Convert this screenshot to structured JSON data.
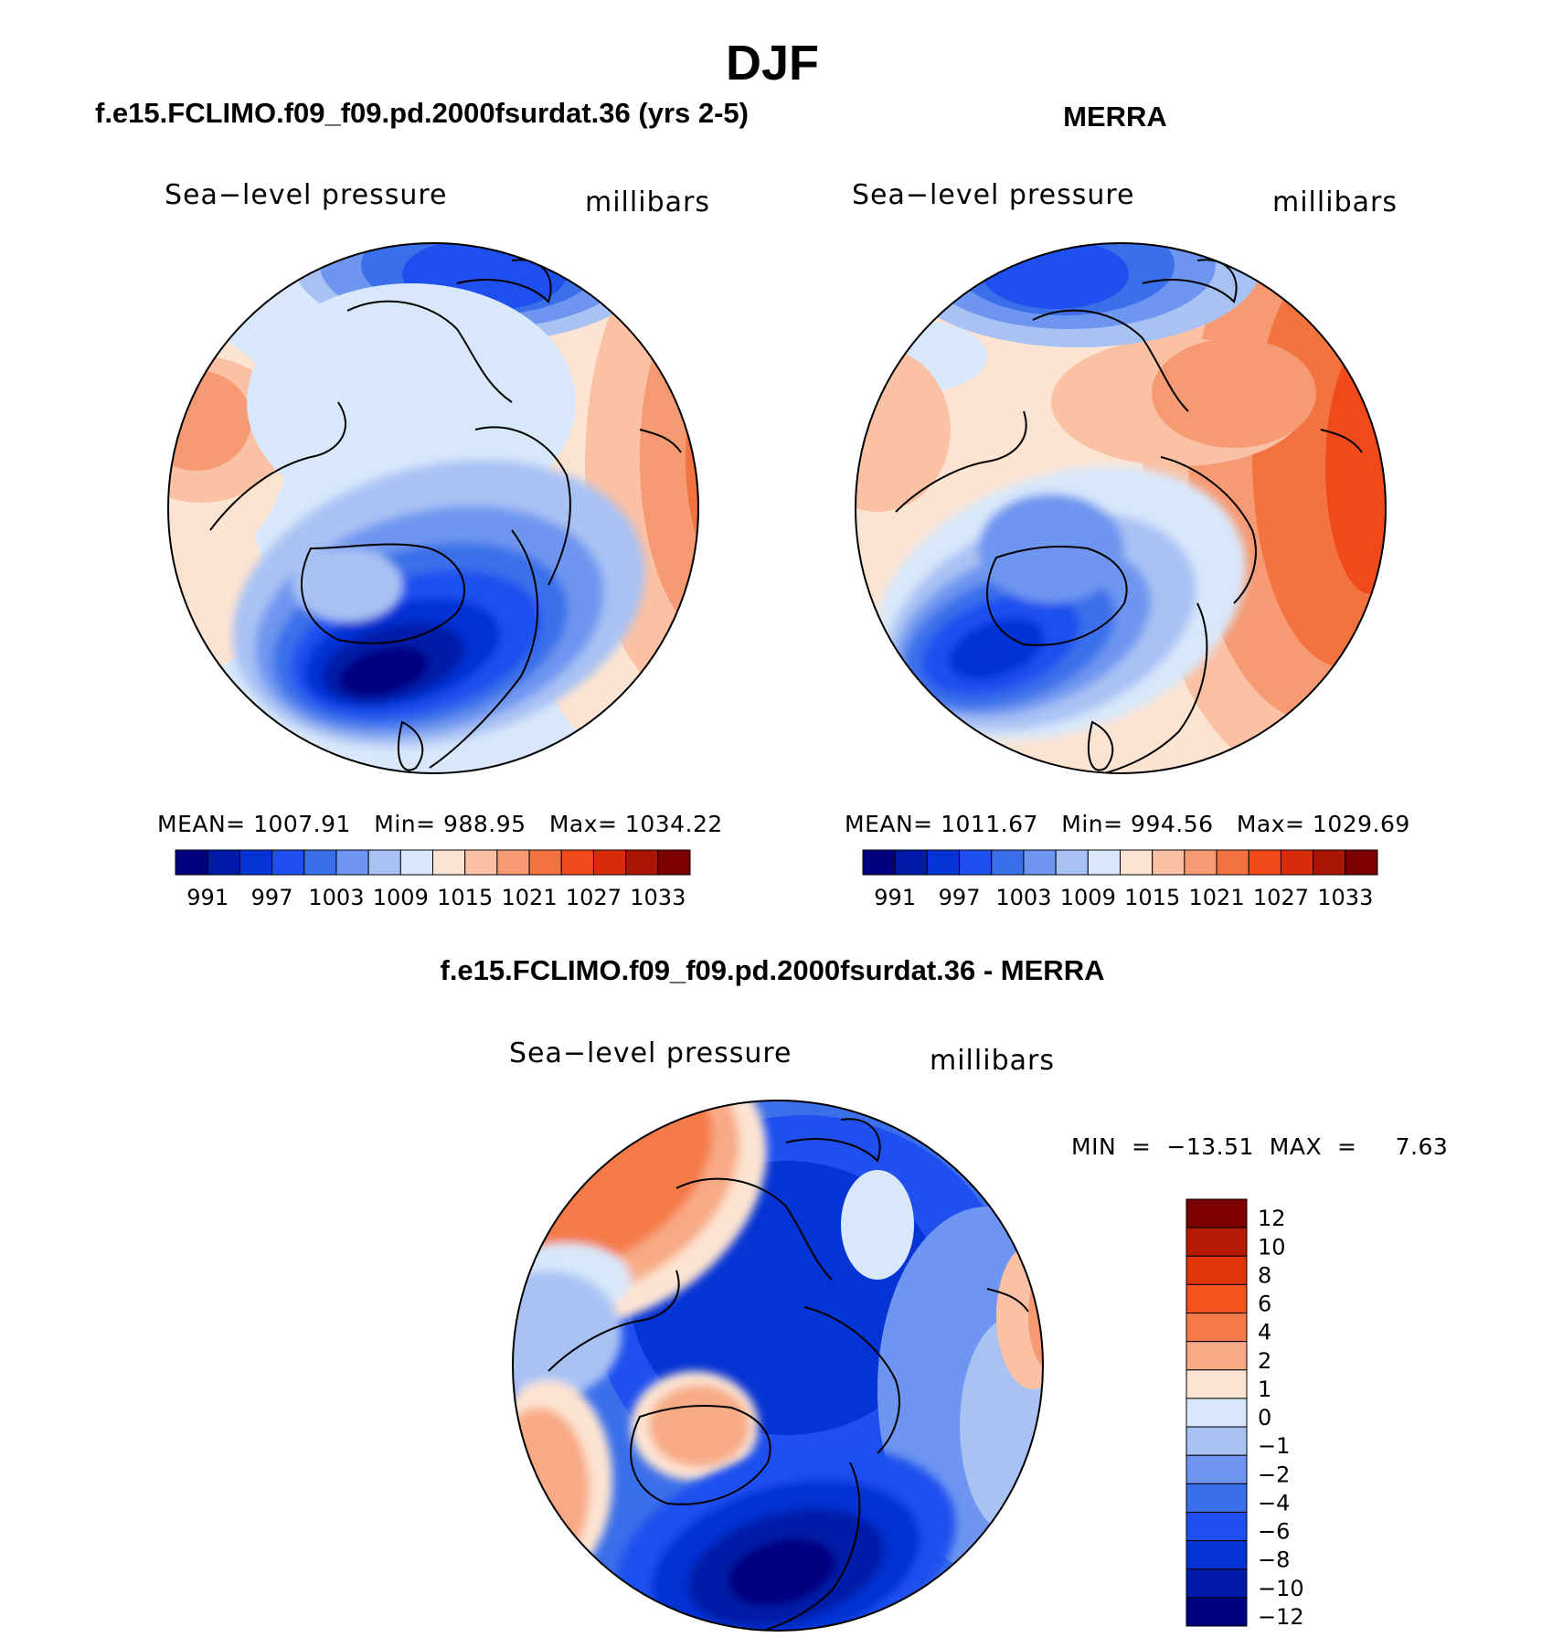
{
  "figure": {
    "title": "DJF"
  },
  "panels": {
    "model": {
      "title": "f.e15.FCLIMO.f09_f09.pd.2000fsurdat.36 (yrs 2-5)",
      "variable": "Sea−level pressure",
      "units": "millibars",
      "stats": "MEAN= 1007.91   Min= 988.95   Max= 1034.22"
    },
    "obs": {
      "title": "MERRA",
      "variable": "Sea−level pressure",
      "units": "millibars",
      "stats": "MEAN= 1011.67   Min= 994.56   Max= 1029.69"
    },
    "difference": {
      "title": "f.e15.FCLIMO.f09_f09.pd.2000fsurdat.36 - MERRA",
      "variable": "Sea−level pressure",
      "units": "millibars",
      "stats": "MIN  =  −13.51  MAX  =     7.63"
    }
  },
  "colorbars": {
    "pressure": {
      "labels": [
        "991",
        "997",
        "1003",
        "1009",
        "1015",
        "1021",
        "1027",
        "1033"
      ],
      "colors": [
        "#00007f",
        "#001aa8",
        "#0533d4",
        "#1f4fef",
        "#3b6fea",
        "#6e96f0",
        "#a9c2f4",
        "#d8e8fa",
        "#fde4d2",
        "#fbc1a4",
        "#f69a74",
        "#f2733f",
        "#f04a1b",
        "#d72c0b",
        "#a81603",
        "#7c0000"
      ]
    },
    "difference": {
      "labels": [
        "12",
        "10",
        "8",
        "6",
        "4",
        "2",
        "1",
        "0",
        "−1",
        "−2",
        "−4",
        "−6",
        "−8",
        "−10",
        "−12"
      ],
      "colors": [
        "#7c0000",
        "#b71a03",
        "#df350d",
        "#f5531e",
        "#f57a4a",
        "#f8aa85",
        "#fde4d2",
        "#d8e8fa",
        "#a9c2f4",
        "#6e96f0",
        "#3b6fea",
        "#1f4fef",
        "#0533d4",
        "#001aa8",
        "#00007f"
      ]
    }
  }
}
